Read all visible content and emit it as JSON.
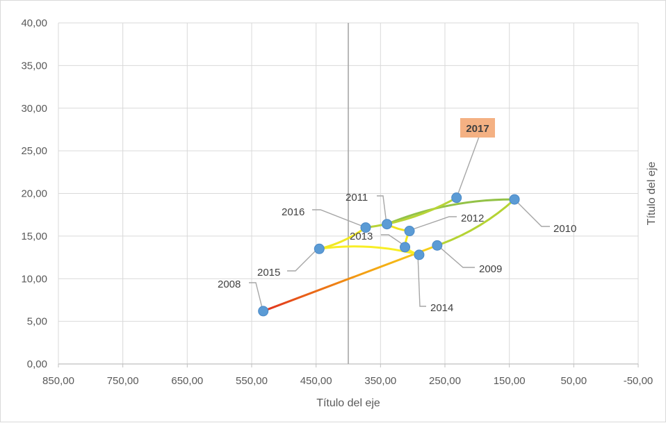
{
  "chart_data": {
    "type": "scatter",
    "xlabel": "Título del eje",
    "ylabel": "Título del eje",
    "x_reversed": true,
    "xlim": [
      850,
      -50
    ],
    "ylim": [
      0,
      40
    ],
    "x_ticks": [
      "850,00",
      "750,00",
      "650,00",
      "550,00",
      "450,00",
      "350,00",
      "250,00",
      "150,00",
      "50,00",
      "-50,00"
    ],
    "y_ticks": [
      "0,00",
      "5,00",
      "10,00",
      "15,00",
      "20,00",
      "25,00",
      "30,00",
      "35,00",
      "40,00"
    ],
    "grid": true,
    "extra_vertical_line_x": 400,
    "series": [
      {
        "points": [
          {
            "label": "2008",
            "x": 532,
            "y": 6.2
          },
          {
            "label": "2009",
            "x": 262,
            "y": 13.9
          },
          {
            "label": "2010",
            "x": 142,
            "y": 19.3
          },
          {
            "label": "2011",
            "x": 340,
            "y": 16.4
          },
          {
            "label": "2012",
            "x": 305,
            "y": 15.6
          },
          {
            "label": "2013",
            "x": 312,
            "y": 13.7
          },
          {
            "label": "2014",
            "x": 290,
            "y": 12.8
          },
          {
            "label": "2015",
            "x": 445,
            "y": 13.5
          },
          {
            "label": "2016",
            "x": 373,
            "y": 16.0
          },
          {
            "label": "2017",
            "x": 232,
            "y": 19.5
          }
        ]
      }
    ],
    "colors": {
      "marker": "#5b9bd5",
      "grid": "#d9d9d9",
      "highlight_box": "#f4b183",
      "leader": "#a6a6a6"
    }
  }
}
